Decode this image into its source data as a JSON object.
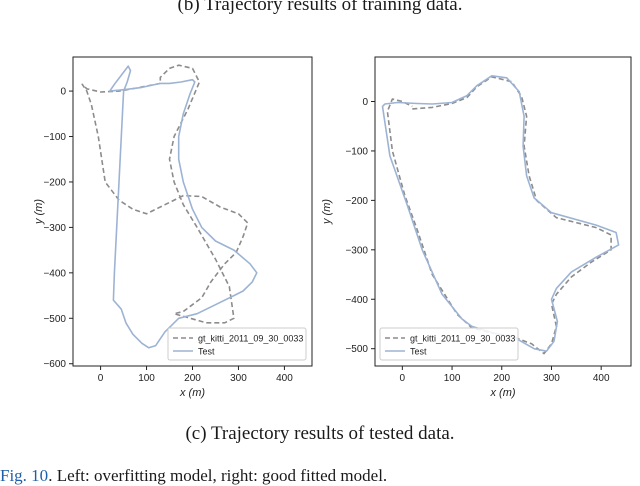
{
  "caption_top": "(b)  Trajectory results of training data.",
  "caption_bottom": "(c)  Trajectory results of tested data.",
  "figure_caption": {
    "label": "Fig. 10",
    "text": ". Left: overfitting model, right: good fitted model."
  },
  "colors": {
    "gt": "#8c8c8c",
    "test": "#9db3d4",
    "axis": "#222222"
  },
  "chart_data": [
    {
      "type": "line",
      "xlabel": "x (m)",
      "ylabel": "y (m)",
      "xlim": [
        -60,
        460
      ],
      "ylim": [
        -605,
        75
      ],
      "xticks": [
        0,
        100,
        200,
        300,
        400
      ],
      "yticks": [
        0,
        -100,
        -200,
        -300,
        -400,
        -500,
        -600
      ],
      "legend_position": "lower right",
      "grid": false,
      "series": [
        {
          "name": "gt_kitti_2011_09_30_0033",
          "style": "dashed",
          "points": [
            [
              130,
              17
            ],
            [
              80,
              7
            ],
            [
              40,
              0
            ],
            [
              0,
              -2
            ],
            [
              -30,
              5
            ],
            [
              -40,
              15
            ],
            [
              -30,
              0
            ],
            [
              -20,
              -30
            ],
            [
              -5,
              -100
            ],
            [
              10,
              -200
            ],
            [
              40,
              -240
            ],
            [
              70,
              -260
            ],
            [
              100,
              -270
            ],
            [
              140,
              -250
            ],
            [
              180,
              -230
            ],
            [
              220,
              -232
            ],
            [
              260,
              -255
            ],
            [
              300,
              -270
            ],
            [
              320,
              -290
            ],
            [
              310,
              -320
            ],
            [
              295,
              -355
            ],
            [
              270,
              -380
            ],
            [
              240,
              -420
            ],
            [
              220,
              -455
            ],
            [
              180,
              -485
            ],
            [
              160,
              -490
            ],
            [
              230,
              -510
            ],
            [
              270,
              -510
            ],
            [
              290,
              -500
            ],
            [
              280,
              -430
            ],
            [
              250,
              -370
            ],
            [
              210,
              -300
            ],
            [
              180,
              -250
            ],
            [
              160,
              -200
            ],
            [
              150,
              -150
            ],
            [
              160,
              -100
            ],
            [
              190,
              -40
            ],
            [
              215,
              20
            ],
            [
              200,
              50
            ],
            [
              170,
              57
            ],
            [
              150,
              50
            ],
            [
              130,
              30
            ],
            [
              130,
              17
            ]
          ]
        },
        {
          "name": "Test",
          "style": "solid",
          "points": [
            [
              130,
              17
            ],
            [
              90,
              8
            ],
            [
              50,
              3
            ],
            [
              20,
              0
            ],
            [
              30,
              15
            ],
            [
              60,
              55
            ],
            [
              65,
              45
            ],
            [
              58,
              20
            ],
            [
              50,
              0
            ],
            [
              45,
              -100
            ],
            [
              40,
              -200
            ],
            [
              35,
              -300
            ],
            [
              30,
              -400
            ],
            [
              28,
              -460
            ],
            [
              45,
              -480
            ],
            [
              55,
              -510
            ],
            [
              70,
              -535
            ],
            [
              90,
              -555
            ],
            [
              105,
              -565
            ],
            [
              120,
              -560
            ],
            [
              140,
              -530
            ],
            [
              170,
              -500
            ],
            [
              210,
              -490
            ],
            [
              250,
              -470
            ],
            [
              290,
              -450
            ],
            [
              310,
              -440
            ],
            [
              330,
              -420
            ],
            [
              340,
              -400
            ],
            [
              325,
              -380
            ],
            [
              290,
              -350
            ],
            [
              250,
              -330
            ],
            [
              220,
              -300
            ],
            [
              200,
              -260
            ],
            [
              180,
              -200
            ],
            [
              170,
              -150
            ],
            [
              170,
              -100
            ],
            [
              180,
              -50
            ],
            [
              195,
              -5
            ],
            [
              205,
              20
            ],
            [
              200,
              25
            ],
            [
              175,
              20
            ],
            [
              150,
              17
            ],
            [
              130,
              17
            ]
          ]
        }
      ]
    },
    {
      "type": "line",
      "xlabel": "x (m)",
      "ylabel": "y (m)",
      "xlim": [
        -55,
        460
      ],
      "ylim": [
        -535,
        90
      ],
      "xticks": [
        0,
        100,
        200,
        300,
        400
      ],
      "yticks": [
        0,
        -100,
        -200,
        -300,
        -400,
        -500
      ],
      "legend_position": "lower left",
      "grid": false,
      "series": [
        {
          "name": "gt_kitti_2011_09_30_0033",
          "style": "dashed",
          "points": [
            [
              20,
              -15
            ],
            [
              60,
              -12
            ],
            [
              100,
              -4
            ],
            [
              130,
              8
            ],
            [
              150,
              30
            ],
            [
              180,
              50
            ],
            [
              220,
              40
            ],
            [
              240,
              10
            ],
            [
              250,
              -30
            ],
            [
              245,
              -90
            ],
            [
              255,
              -150
            ],
            [
              270,
              -200
            ],
            [
              310,
              -235
            ],
            [
              390,
              -255
            ],
            [
              420,
              -270
            ],
            [
              420,
              -300
            ],
            [
              380,
              -325
            ],
            [
              340,
              -355
            ],
            [
              310,
              -390
            ],
            [
              300,
              -410
            ],
            [
              310,
              -455
            ],
            [
              300,
              -490
            ],
            [
              285,
              -510
            ],
            [
              260,
              -490
            ],
            [
              220,
              -475
            ],
            [
              180,
              -468
            ],
            [
              140,
              -458
            ],
            [
              110,
              -430
            ],
            [
              60,
              -350
            ],
            [
              30,
              -260
            ],
            [
              5,
              -190
            ],
            [
              -20,
              -100
            ],
            [
              -30,
              -20
            ],
            [
              -20,
              5
            ],
            [
              0,
              0
            ],
            [
              20,
              -10
            ]
          ]
        },
        {
          "name": "Test",
          "style": "solid",
          "points": [
            [
              60,
              -5
            ],
            [
              100,
              -2
            ],
            [
              130,
              12
            ],
            [
              150,
              32
            ],
            [
              180,
              52
            ],
            [
              210,
              48
            ],
            [
              235,
              20
            ],
            [
              245,
              -30
            ],
            [
              243,
              -90
            ],
            [
              250,
              -150
            ],
            [
              265,
              -195
            ],
            [
              300,
              -225
            ],
            [
              390,
              -250
            ],
            [
              430,
              -265
            ],
            [
              435,
              -290
            ],
            [
              390,
              -315
            ],
            [
              340,
              -345
            ],
            [
              310,
              -378
            ],
            [
              300,
              -400
            ],
            [
              312,
              -445
            ],
            [
              305,
              -485
            ],
            [
              290,
              -505
            ],
            [
              265,
              -500
            ],
            [
              230,
              -480
            ],
            [
              180,
              -467
            ],
            [
              140,
              -455
            ],
            [
              120,
              -440
            ],
            [
              80,
              -390
            ],
            [
              40,
              -300
            ],
            [
              10,
              -210
            ],
            [
              -25,
              -110
            ],
            [
              -40,
              -10
            ],
            [
              -35,
              -5
            ],
            [
              -10,
              -2
            ],
            [
              30,
              -4
            ],
            [
              60,
              -5
            ]
          ]
        }
      ]
    }
  ]
}
